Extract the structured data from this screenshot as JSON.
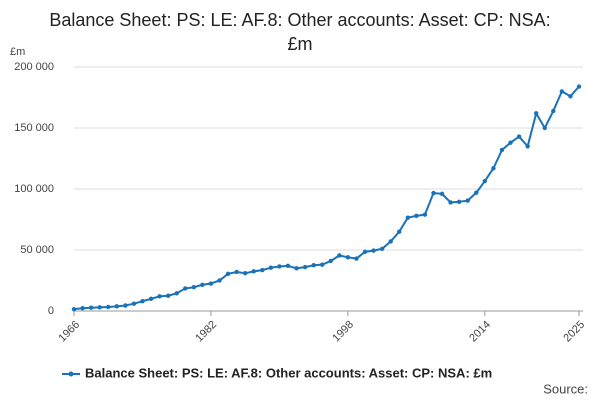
{
  "chart_data": {
    "type": "line",
    "title": "Balance Sheet: PS: LE: AF.8: Other accounts: Asset: CP: NSA: £m",
    "y_unit": "£m",
    "source": "Source:",
    "x": [
      1966,
      1967,
      1968,
      1969,
      1970,
      1971,
      1972,
      1973,
      1974,
      1975,
      1976,
      1977,
      1978,
      1979,
      1980,
      1981,
      1982,
      1983,
      1984,
      1985,
      1986,
      1987,
      1988,
      1989,
      1990,
      1991,
      1992,
      1993,
      1994,
      1995,
      1996,
      1997,
      1998,
      1999,
      2000,
      2001,
      2002,
      2003,
      2004,
      2005,
      2006,
      2007,
      2008,
      2009,
      2010,
      2011,
      2012,
      2013,
      2014,
      2015,
      2016,
      2017,
      2018,
      2019,
      2020,
      2021,
      2022,
      2023,
      2024,
      2025
    ],
    "series": [
      {
        "name": "Balance Sheet: PS: LE: AF.8: Other accounts: Asset: CP: NSA: £m",
        "color": "#1a72b8",
        "values": [
          1500,
          2300,
          2700,
          3000,
          3300,
          3800,
          4500,
          6000,
          8000,
          10000,
          12000,
          12500,
          14500,
          18500,
          19500,
          21500,
          22500,
          25000,
          30500,
          32000,
          31000,
          32500,
          33500,
          35500,
          36500,
          37000,
          35000,
          36000,
          37500,
          38000,
          41000,
          45500,
          44000,
          43000,
          48500,
          49500,
          51000,
          57000,
          65000,
          76500,
          78000,
          79000,
          96700,
          96000,
          89000,
          89500,
          90500,
          97000,
          106500,
          117000,
          132000,
          138000,
          143000,
          135000,
          162000,
          150000,
          164000,
          180000,
          176000,
          184000
        ]
      }
    ],
    "xlim": [
      1966,
      2025
    ],
    "xticks": [
      1966,
      1982,
      1998,
      2014,
      2025
    ],
    "ylim": [
      0,
      200000
    ],
    "yticks": [
      0,
      {
        "value": 50000,
        "label": "50 000"
      },
      {
        "value": 100000,
        "label": "100 000"
      },
      {
        "value": 150000,
        "label": "150 000"
      },
      {
        "value": 200000,
        "label": "200 000"
      }
    ],
    "grid": true
  }
}
